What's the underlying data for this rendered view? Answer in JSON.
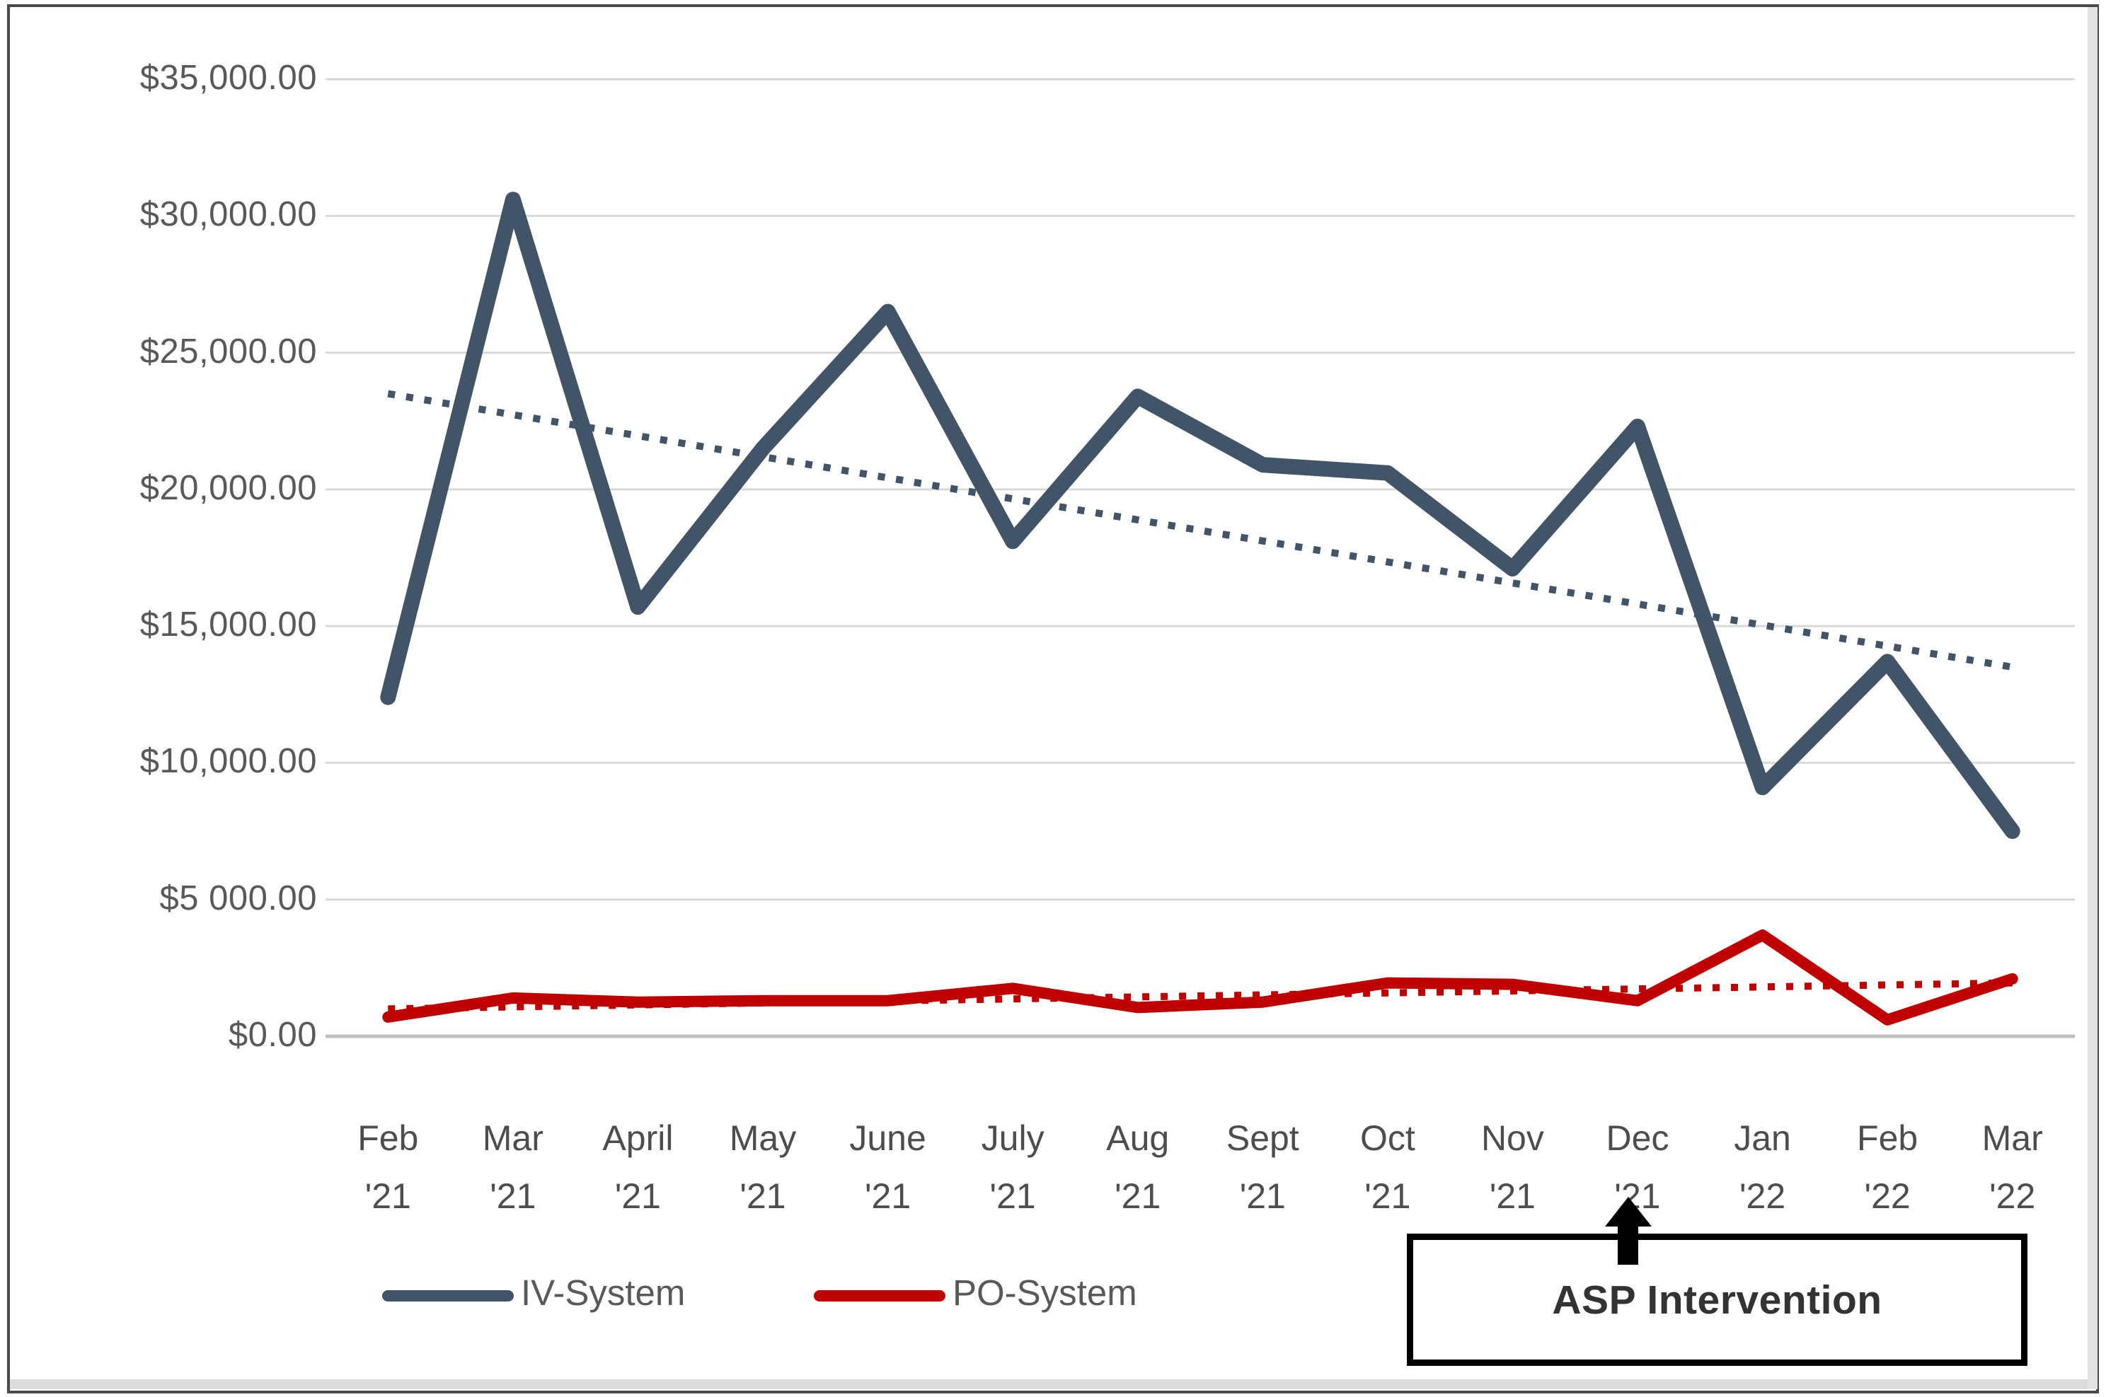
{
  "chart_data": {
    "type": "line",
    "title": "",
    "xlabel": "",
    "ylabel": "",
    "categories": [
      "Feb '21",
      "Mar '21",
      "April '21",
      "May '21",
      "June '21",
      "July '21",
      "Aug '21",
      "Sept '21",
      "Oct '21",
      "Nov '21",
      "Dec '21",
      "Jan '22",
      "Feb '22",
      "Mar '22"
    ],
    "y_ticks": [
      {
        "value": 0,
        "label": "$0.00"
      },
      {
        "value": 5000,
        "label": "$5 000.00"
      },
      {
        "value": 10000,
        "label": "$10,000.00"
      },
      {
        "value": 15000,
        "label": "$15,000.00"
      },
      {
        "value": 20000,
        "label": "$20,000.00"
      },
      {
        "value": 25000,
        "label": "$25,000.00"
      },
      {
        "value": 30000,
        "label": "$30,000.00"
      },
      {
        "value": 35000,
        "label": "$35,000.00"
      }
    ],
    "ylim": [
      0,
      35000
    ],
    "grid": true,
    "legend_position": "bottom",
    "series": [
      {
        "name": "IV-System",
        "color": "#425468",
        "line_width": 22,
        "values": [
          12400,
          30600,
          15700,
          21500,
          26500,
          18100,
          23400,
          20900,
          20600,
          17100,
          22300,
          9100,
          13700,
          7500
        ]
      },
      {
        "name": "PO-System",
        "color": "#c00000",
        "line_width": 16,
        "values": [
          700,
          1400,
          1250,
          1300,
          1300,
          1750,
          1050,
          1250,
          1950,
          1900,
          1300,
          3700,
          600,
          2100
        ]
      }
    ],
    "trendlines": [
      {
        "series": "IV-System",
        "color": "#425468",
        "style": "dotted",
        "start_value": 23500,
        "end_value": 13500
      },
      {
        "series": "PO-System",
        "color": "#c00000",
        "style": "dotted",
        "start_value": 1000,
        "end_value": 1950
      }
    ]
  },
  "legend": {
    "items": [
      {
        "label": "IV-System",
        "color": "#425468"
      },
      {
        "label": "PO-System",
        "color": "#c00000"
      }
    ]
  },
  "annotation": {
    "label": "ASP Intervention",
    "arrow_points_to": "Dec '21"
  },
  "colors": {
    "gridline": "#d9d9d9",
    "axis_line": "#bfbfbf",
    "tick_text": "#595959"
  }
}
